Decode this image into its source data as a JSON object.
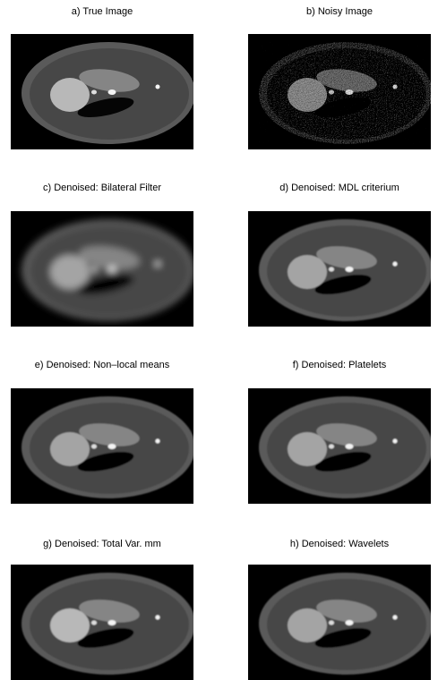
{
  "panels": [
    {
      "title": "a) True Image"
    },
    {
      "title": "b) Noisy Image"
    },
    {
      "title": "c) Denoised: Bilateral Filter"
    },
    {
      "title": "d) Denoised: MDL criterium"
    },
    {
      "title": "e) Denoised: Non–local means"
    },
    {
      "title": "f) Denoised: Platelets"
    },
    {
      "title": "g) Denoised: Total Var. mm"
    },
    {
      "title": "h) Denoised: Wavelets"
    }
  ]
}
